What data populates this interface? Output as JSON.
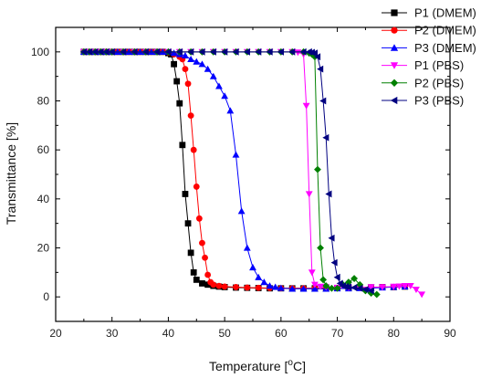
{
  "chart_data": {
    "type": "scatter",
    "xlabel": "Temperature [",
    "xlabel_sup": "o",
    "xlabel_tail": "C]",
    "ylabel": "Transmittance [%]",
    "xlim": [
      20,
      90
    ],
    "ylim": [
      -10,
      110
    ],
    "xticks": [
      20,
      30,
      40,
      50,
      60,
      70,
      80,
      90
    ],
    "yticks": [
      0,
      20,
      40,
      60,
      80,
      100
    ],
    "grid": false,
    "legend_position": "top-right-outside",
    "series": [
      {
        "name": "P1 (DMEM)",
        "color": "#000000",
        "marker": "square",
        "x": [
          25,
          26,
          27,
          28,
          29,
          30,
          31,
          32,
          33,
          34,
          35,
          36,
          37,
          38,
          39,
          40,
          40.5,
          41,
          41.5,
          42,
          42.5,
          43,
          43.5,
          44,
          44.5,
          45,
          46,
          47,
          48,
          49,
          50,
          52,
          54,
          56,
          58,
          60,
          62,
          64,
          66,
          68,
          70,
          72,
          74,
          76,
          78,
          80,
          82
        ],
        "y": [
          100,
          100,
          100,
          100,
          100,
          100,
          100,
          100,
          100,
          100,
          100,
          100,
          100,
          100,
          100,
          99.5,
          99,
          95,
          88,
          79,
          62,
          42,
          30,
          18,
          10,
          7,
          5.5,
          5,
          4.5,
          4.2,
          4,
          3.8,
          3.7,
          3.6,
          3.5,
          3.5,
          3.5,
          3.5,
          3.5,
          3.5,
          3.6,
          3.7,
          3.8,
          3.9,
          4,
          4,
          4.2
        ]
      },
      {
        "name": "P2 (DMEM)",
        "color": "#ff0000",
        "marker": "circle",
        "x": [
          25,
          26,
          27,
          28,
          29,
          30,
          31,
          32,
          33,
          34,
          35,
          36,
          37,
          38,
          39,
          40,
          41,
          42,
          42.5,
          43,
          43.5,
          44,
          44.5,
          45,
          45.5,
          46,
          46.5,
          47,
          47.5,
          48,
          49,
          50,
          52,
          54,
          56,
          58,
          60,
          62,
          64,
          66,
          68,
          70,
          72,
          74,
          76,
          78,
          80,
          82
        ],
        "y": [
          100,
          100,
          100,
          100,
          100,
          100,
          100,
          100,
          100,
          100,
          100,
          100,
          100,
          100,
          100,
          99.8,
          99,
          98,
          97,
          93,
          87,
          74,
          60,
          45,
          32,
          22,
          16,
          9,
          6,
          5,
          4.5,
          4.2,
          4,
          3.8,
          3.7,
          3.6,
          3.5,
          3.5,
          3.5,
          3.5,
          3.6,
          3.6,
          3.7,
          3.8,
          3.9,
          4,
          4,
          4.2
        ]
      },
      {
        "name": "P3 (DMEM)",
        "color": "#0000ff",
        "marker": "triangle-up",
        "x": [
          25,
          26,
          27,
          28,
          29,
          30,
          31,
          32,
          33,
          34,
          35,
          36,
          37,
          38,
          39,
          40,
          41,
          42,
          43,
          44,
          45,
          46,
          47,
          48,
          49,
          50,
          51,
          52,
          53,
          54,
          55,
          56,
          57,
          58,
          59,
          60,
          62,
          64,
          66,
          68,
          70,
          72,
          74,
          76,
          78,
          80,
          82
        ],
        "y": [
          100,
          100,
          100,
          100,
          100,
          100,
          100,
          100,
          100,
          100,
          100,
          100,
          100,
          100,
          100,
          100,
          99.5,
          99,
          98.5,
          97,
          96,
          95,
          93,
          90,
          86,
          82,
          76,
          58,
          35,
          20,
          12,
          8,
          6,
          4.5,
          4,
          3.6,
          3.3,
          3.3,
          3.3,
          3.3,
          3.4,
          3.4,
          3.5,
          3.6,
          3.8,
          4,
          4.2
        ]
      },
      {
        "name": "P1 (PBS)",
        "color": "#ff00ff",
        "marker": "triangle-down",
        "x": [
          25,
          26,
          27,
          28,
          29,
          30,
          32,
          34,
          36,
          38,
          40,
          42,
          44,
          46,
          48,
          50,
          52,
          54,
          56,
          58,
          60,
          62,
          63,
          64,
          64.5,
          65,
          65.5,
          66,
          67,
          68,
          70,
          72,
          74,
          76,
          78,
          80,
          81,
          82,
          83,
          84,
          85
        ],
        "y": [
          100,
          100,
          100,
          100,
          100,
          100,
          100,
          100,
          100,
          100,
          100,
          100,
          100,
          100,
          100,
          100,
          100,
          100,
          100,
          100,
          100,
          100,
          99.8,
          99,
          78,
          42,
          10,
          5,
          4.2,
          4,
          3.8,
          3.8,
          3.9,
          4,
          4,
          4.2,
          4.3,
          4.5,
          4.5,
          3,
          1
        ]
      },
      {
        "name": "P2 (PBS)",
        "color": "#008000",
        "marker": "diamond",
        "x": [
          25,
          26,
          27,
          28,
          29,
          30,
          32,
          34,
          36,
          38,
          40,
          42,
          44,
          46,
          48,
          50,
          52,
          54,
          56,
          58,
          60,
          62,
          64,
          65,
          65.5,
          66,
          66.5,
          67,
          67.5,
          68,
          69,
          70,
          71,
          72,
          73,
          74,
          75,
          76,
          77
        ],
        "y": [
          100,
          100,
          100,
          100,
          100,
          100,
          100,
          100,
          100,
          100,
          100,
          100,
          100,
          100,
          100,
          100,
          100,
          100,
          100,
          100,
          100,
          100,
          100,
          99.5,
          99,
          98,
          52,
          20,
          7,
          4.5,
          3.5,
          3.5,
          5,
          6,
          7.5,
          5,
          2.5,
          1.5,
          1
        ]
      },
      {
        "name": "P3 (PBS)",
        "color": "#000080",
        "marker": "triangle-left",
        "x": [
          25,
          26,
          27,
          28,
          29,
          30,
          32,
          34,
          36,
          38,
          40,
          42,
          44,
          46,
          48,
          50,
          52,
          54,
          56,
          58,
          60,
          62,
          64,
          65,
          65.5,
          66,
          66.5,
          67,
          67.5,
          68,
          68.5,
          69,
          69.5,
          70,
          70.5,
          71,
          71.5,
          72,
          73,
          74,
          75,
          76
        ],
        "y": [
          100,
          100,
          100,
          100,
          100,
          100,
          100,
          100,
          100,
          100,
          100,
          100,
          100,
          100,
          100,
          100,
          100,
          100,
          100,
          100,
          100,
          100,
          100,
          100,
          99.8,
          99.5,
          98,
          93,
          80,
          65,
          42,
          24,
          14,
          8,
          5.5,
          4.5,
          4.2,
          4,
          3.8,
          3.5,
          3,
          2.5
        ]
      }
    ]
  }
}
